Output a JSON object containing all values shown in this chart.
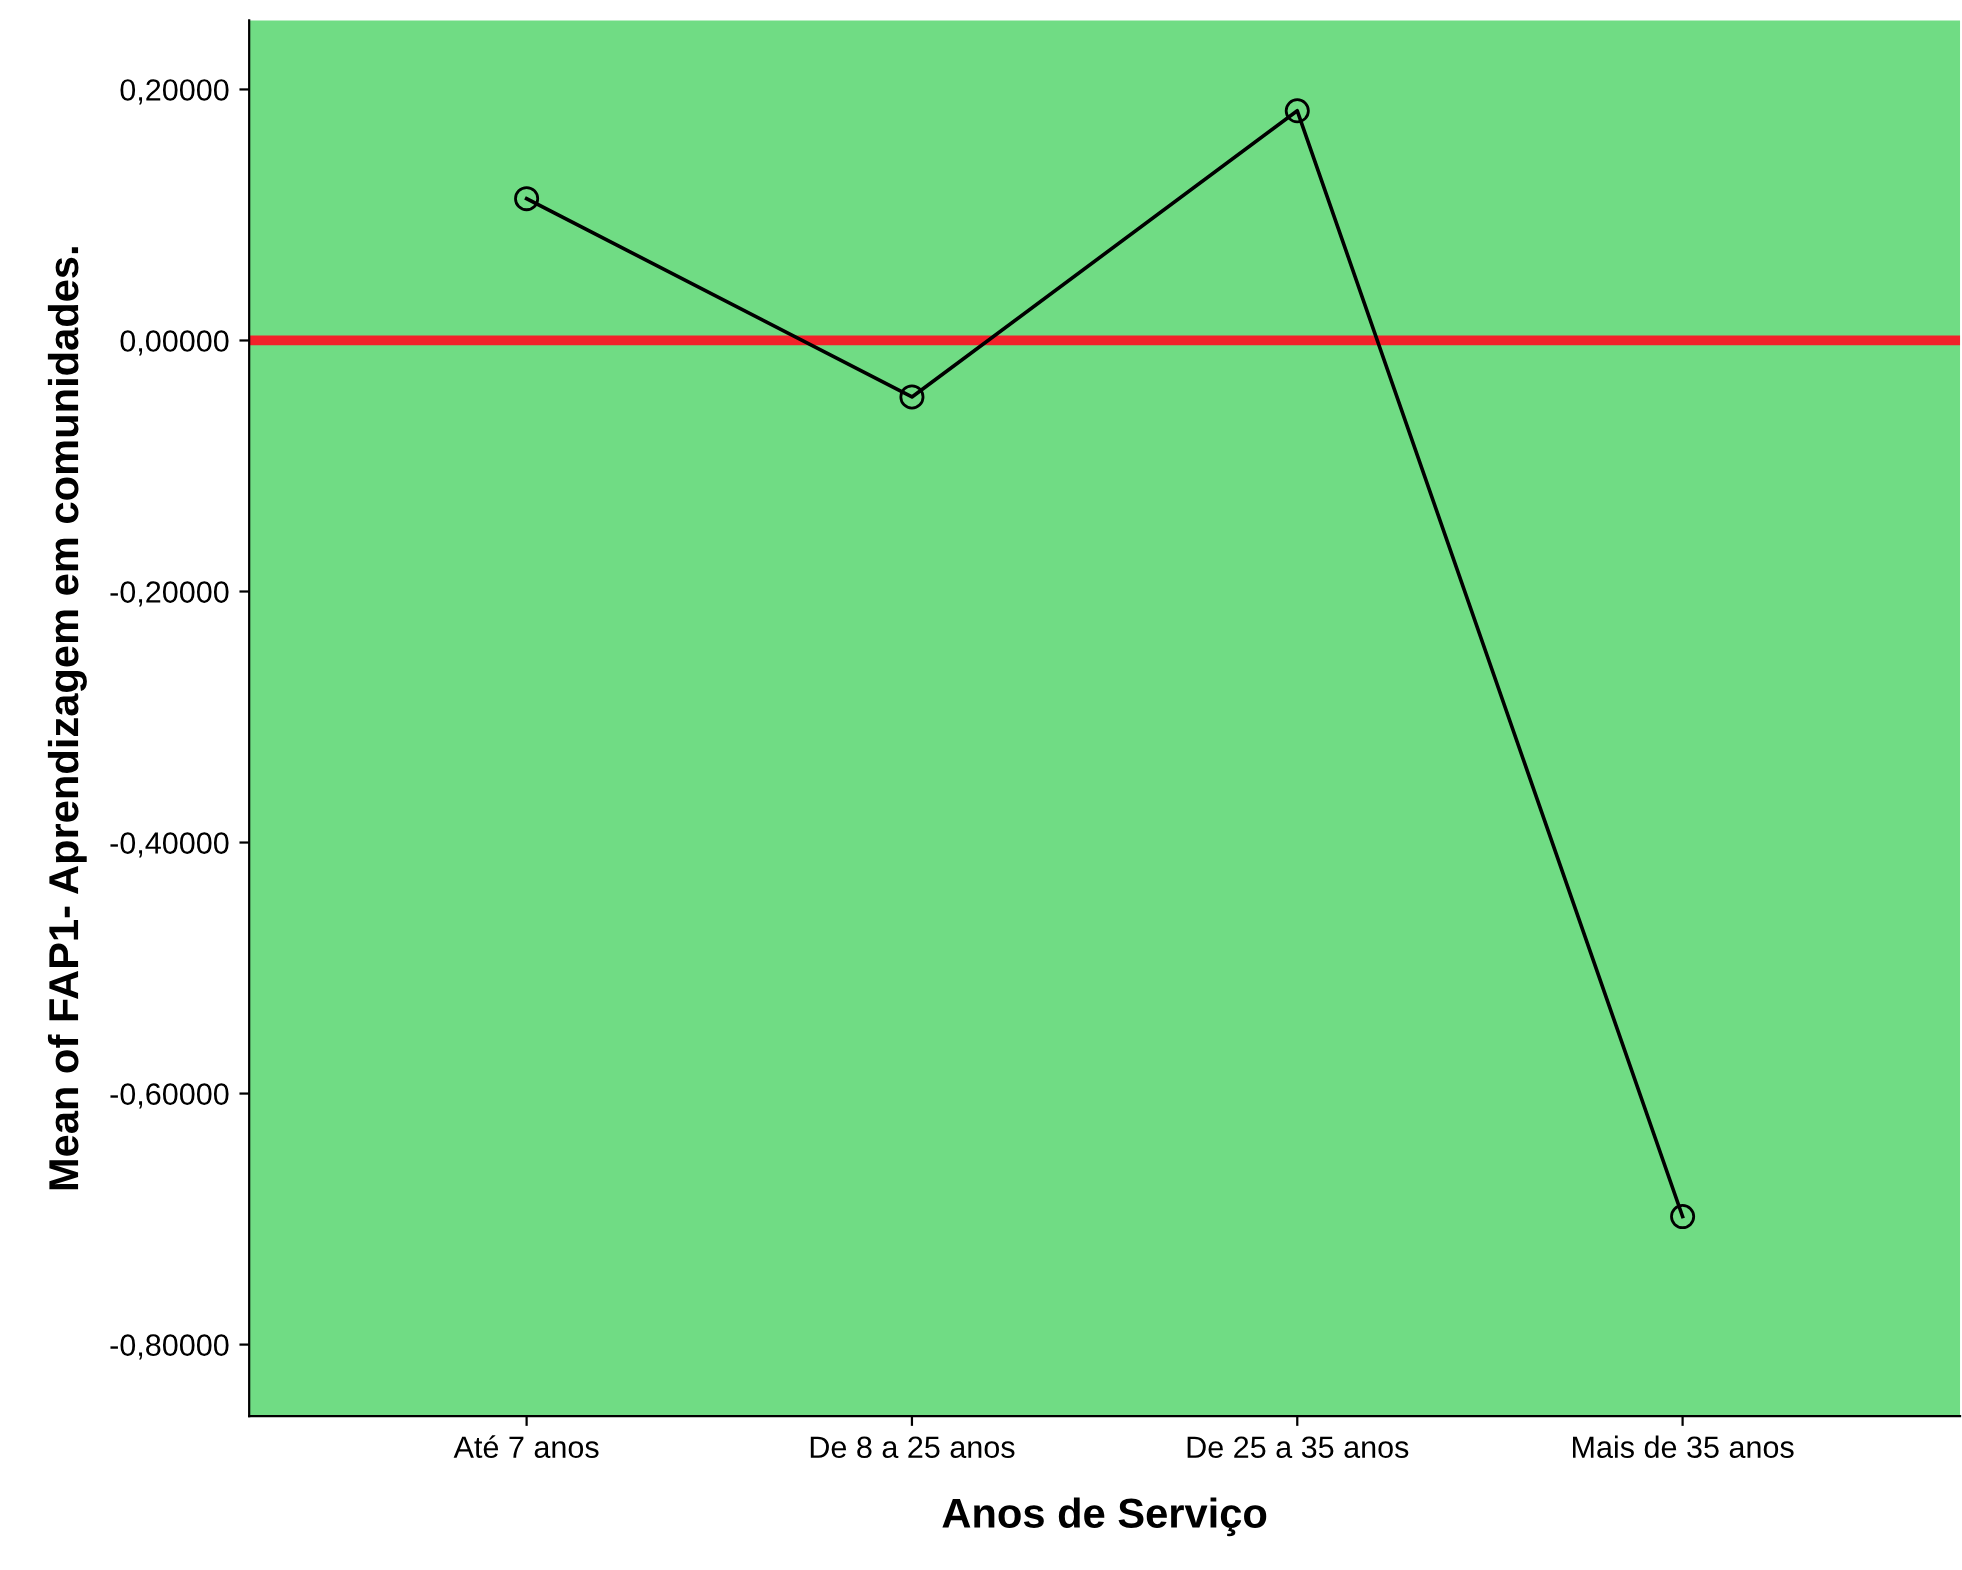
{
  "chart_data": {
    "type": "line",
    "xlabel": "Anos de Serviço",
    "ylabel": "Mean of FAP1- Aprendizagem em comunidades.",
    "categories": [
      "Até 7 anos",
      "De 8 a 25 anos",
      "De 25 a 35 anos",
      "Mais de 35 anos"
    ],
    "series": [
      {
        "color": "#000000",
        "values": [
          0.113,
          -0.045,
          0.183,
          -0.698
        ]
      }
    ],
    "ylim": [
      -0.857,
      0.255
    ],
    "yticks": [
      {
        "value": 0.2,
        "label": "0,20000"
      },
      {
        "value": 0,
        "label": "0,00000"
      },
      {
        "value": -0.2,
        "label": "-0,20000"
      },
      {
        "value": -0.4,
        "label": "-0,40000"
      },
      {
        "value": -0.6,
        "label": "-0,60000"
      },
      {
        "value": -0.8,
        "label": "-0,80000"
      }
    ],
    "ref_lines": [
      {
        "axis": "y",
        "value": 0,
        "color": "#f2222a"
      }
    ],
    "marker": "circle",
    "line_style": "solid",
    "grid": false,
    "legend": false
  }
}
